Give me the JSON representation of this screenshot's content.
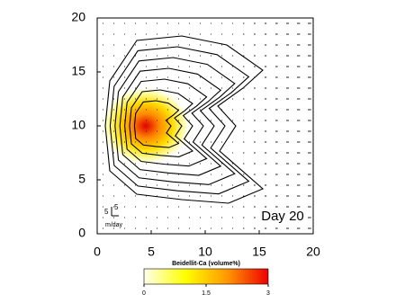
{
  "chart_data": {
    "type": "heatmap",
    "xlim": [
      0,
      20
    ],
    "ylim": [
      0,
      20
    ],
    "xticks": [
      0,
      5,
      10,
      15,
      20
    ],
    "yticks": [
      0,
      5,
      10,
      15,
      20
    ],
    "annotation": "Day 20",
    "scale_key": {
      "x_label": "5",
      "y_label": "5",
      "unit": "m/day"
    },
    "colorbar": {
      "label": "Beidellit-Ca (volume%)",
      "lim": [
        0,
        3
      ],
      "ticks": [
        0,
        1.5,
        3
      ],
      "colors": [
        "#ffffee",
        "#ffff00",
        "#ff9900",
        "#ee0000"
      ]
    }
  }
}
